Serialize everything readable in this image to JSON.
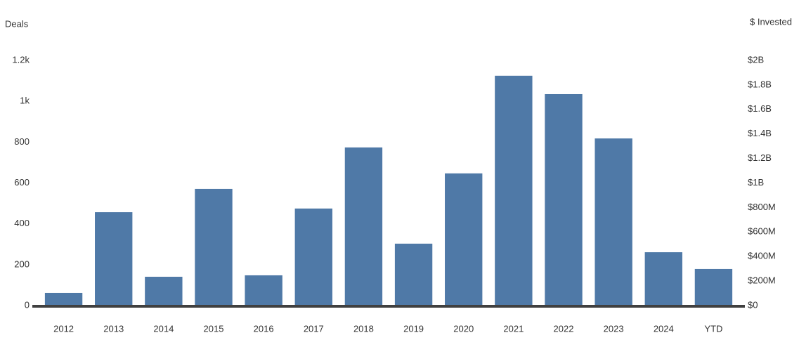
{
  "chart_data": {
    "type": "bar",
    "y_label": "Deals",
    "y2_label": "$ Invested",
    "categories": [
      "2012",
      "2013",
      "2014",
      "2015",
      "2016",
      "2017",
      "2018",
      "2019",
      "2020",
      "2021",
      "2022",
      "2023",
      "2024",
      "YTD"
    ],
    "values": [
      62,
      457,
      141,
      571,
      148,
      475,
      774,
      303,
      647,
      1125,
      1035,
      818,
      261,
      179
    ],
    "color": "#4f79a7",
    "ylim": [
      0,
      1200
    ],
    "yticks": [
      0,
      200,
      400,
      600,
      800,
      {
        "value": 1000,
        "label": "1k"
      },
      {
        "value": 1200,
        "label": "1.2k"
      }
    ],
    "y2lim": [
      0,
      2000000000
    ],
    "y2ticks": [
      {
        "value": 0,
        "label": "$0"
      },
      {
        "value": 200000000,
        "label": "$200M"
      },
      {
        "value": 400000000,
        "label": "$400M"
      },
      {
        "value": 600000000,
        "label": "$600M"
      },
      {
        "value": 800000000,
        "label": "$800M"
      },
      {
        "value": 1000000000,
        "label": "$1B"
      },
      {
        "value": 1200000000,
        "label": "$1.2B"
      },
      {
        "value": 1400000000,
        "label": "$1.4B"
      },
      {
        "value": 1600000000,
        "label": "$1.6B"
      },
      {
        "value": 1800000000,
        "label": "$1.8B"
      },
      {
        "value": 2000000000,
        "label": "$2B"
      }
    ],
    "grid": false
  }
}
